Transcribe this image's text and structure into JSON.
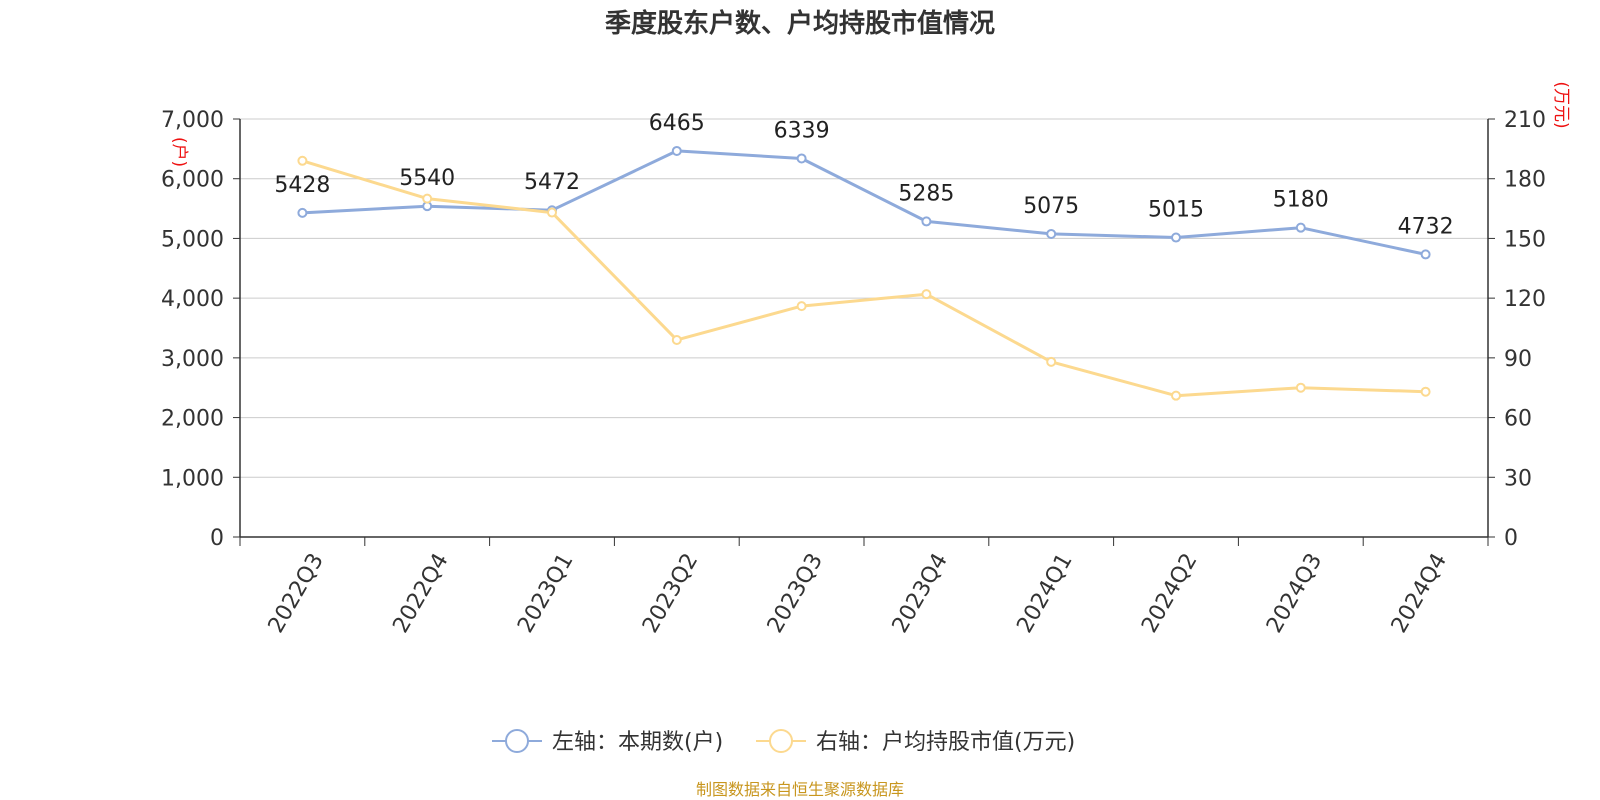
{
  "chart_data": {
    "type": "line",
    "title": "季度股东户数、户均持股市值情况",
    "categories": [
      "2022Q3",
      "2022Q4",
      "2023Q1",
      "2023Q2",
      "2023Q3",
      "2023Q4",
      "2024Q1",
      "2024Q2",
      "2024Q3",
      "2024Q4"
    ],
    "series": [
      {
        "name": "左轴：本期数(户)",
        "axis": "left",
        "color": "#8eaadb",
        "values": [
          5428,
          5540,
          5472,
          6465,
          6339,
          5285,
          5075,
          5015,
          5180,
          4732
        ],
        "labels": [
          "5428",
          "5540",
          "5472",
          "6465",
          "6339",
          "5285",
          "5075",
          "5015",
          "5180",
          "4732"
        ]
      },
      {
        "name": "右轴：户均持股市值(万元)",
        "axis": "right",
        "color": "#fcd98f",
        "values": [
          189,
          170,
          163,
          99,
          116,
          122,
          88,
          71,
          75,
          73
        ]
      }
    ],
    "left_axis": {
      "unit": "(户)",
      "ylim": [
        0,
        7000
      ],
      "ticks": [
        "0",
        "1,000",
        "2,000",
        "3,000",
        "4,000",
        "5,000",
        "6,000",
        "7,000"
      ]
    },
    "right_axis": {
      "unit": "(万元)",
      "ylim": [
        0,
        210
      ],
      "ticks": [
        "0",
        "30",
        "60",
        "90",
        "120",
        "150",
        "180",
        "210"
      ]
    },
    "legend_position": "bottom-center",
    "grid": true
  },
  "source": "制图数据来自恒生聚源数据库"
}
